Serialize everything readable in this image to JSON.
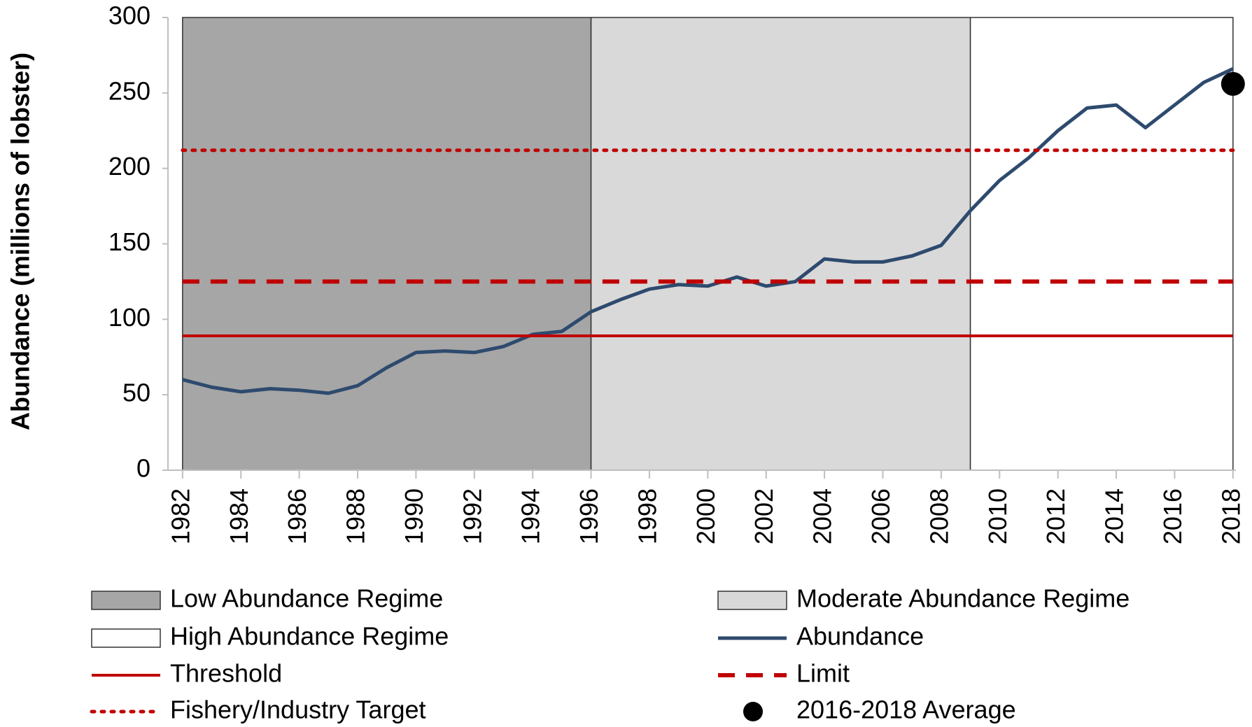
{
  "chart_data": {
    "type": "line",
    "y_label": "Abundance (millions of lobster)",
    "x": [
      1982,
      1983,
      1984,
      1985,
      1986,
      1987,
      1988,
      1989,
      1990,
      1991,
      1992,
      1993,
      1994,
      1995,
      1996,
      1997,
      1998,
      1999,
      2000,
      2001,
      2002,
      2003,
      2004,
      2005,
      2006,
      2007,
      2008,
      2009,
      2010,
      2011,
      2012,
      2013,
      2014,
      2015,
      2016,
      2017,
      2018
    ],
    "xlim": [
      1981.5,
      2018.1
    ],
    "xticks": [
      1982,
      1984,
      1986,
      1988,
      1990,
      1992,
      1994,
      1996,
      1998,
      2000,
      2002,
      2004,
      2006,
      2008,
      2010,
      2012,
      2014,
      2016,
      2018
    ],
    "ylim": [
      0,
      300
    ],
    "yticks": [
      0,
      50,
      100,
      150,
      200,
      250,
      300
    ],
    "series": [
      {
        "name": "Low Abundance Regime",
        "kind": "band",
        "color": "#a6a6a6",
        "start": 1982,
        "end": 1996
      },
      {
        "name": "Moderate Abundance Regime",
        "kind": "band",
        "color": "#d9d9d9",
        "start": 1996,
        "end": 2009
      },
      {
        "name": "High Abundance Regime",
        "kind": "band",
        "color": "#ffffff",
        "start": 2009,
        "end": 2018
      },
      {
        "name": "Abundance",
        "kind": "line",
        "color": "#2e4a6e",
        "dash": "solid",
        "values": [
          60,
          55,
          52,
          54,
          53,
          51,
          56,
          68,
          78,
          79,
          78,
          82,
          90,
          92,
          105,
          113,
          120,
          123,
          122,
          128,
          122,
          125,
          140,
          138,
          138,
          142,
          149,
          172,
          192,
          207,
          225,
          240,
          242,
          227,
          242,
          257,
          266
        ]
      },
      {
        "name": "Threshold",
        "kind": "hline",
        "color": "#c00000",
        "dash": "solid",
        "value": 89
      },
      {
        "name": "Limit",
        "kind": "hline",
        "color": "#c00000",
        "dash": "dashed",
        "value": 125
      },
      {
        "name": "Fishery/Industry Target",
        "kind": "hline",
        "color": "#c00000",
        "dash": "dotted",
        "value": 212
      },
      {
        "name": "2016-2018 Average",
        "kind": "point",
        "color": "#000000",
        "x": 2018,
        "value": 256
      }
    ]
  }
}
